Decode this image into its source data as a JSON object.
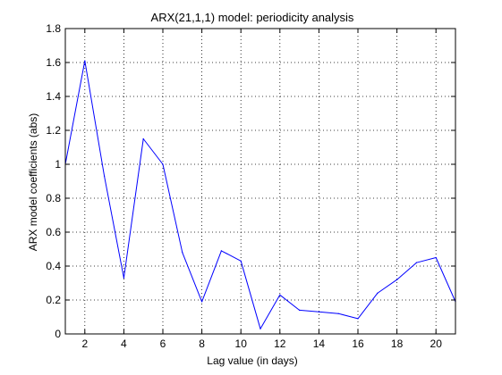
{
  "chart_data": {
    "type": "line",
    "title": "ARX(21,1,1) model: periodicity analysis",
    "xlabel": "Lag value (in days)",
    "ylabel": "ARX model coefficients (abs)",
    "xlim": [
      1,
      21
    ],
    "ylim": [
      0,
      1.8
    ],
    "x_ticks": [
      2,
      4,
      6,
      8,
      10,
      12,
      14,
      16,
      18,
      20
    ],
    "y_ticks": [
      0,
      0.2,
      0.4,
      0.6,
      0.8,
      1,
      1.2,
      1.4,
      1.6,
      1.8
    ],
    "x_tick_labels": [
      "2",
      "4",
      "6",
      "8",
      "10",
      "12",
      "14",
      "16",
      "18",
      "20"
    ],
    "y_tick_labels": [
      "0",
      "0.2",
      "0.4",
      "0.6",
      "0.8",
      "1",
      "1.2",
      "1.4",
      "1.6",
      "1.8"
    ],
    "grid": "dotted",
    "legend": "none",
    "line_color": "#0000ff",
    "x": [
      1,
      2,
      3,
      4,
      5,
      6,
      7,
      8,
      9,
      10,
      11,
      12,
      13,
      14,
      15,
      16,
      17,
      18,
      19,
      20,
      21
    ],
    "y": [
      1.0,
      1.61,
      0.93,
      0.33,
      1.15,
      1.0,
      0.48,
      0.19,
      0.49,
      0.43,
      0.03,
      0.23,
      0.14,
      0.13,
      0.12,
      0.09,
      0.24,
      0.32,
      0.42,
      0.45,
      0.19
    ]
  }
}
